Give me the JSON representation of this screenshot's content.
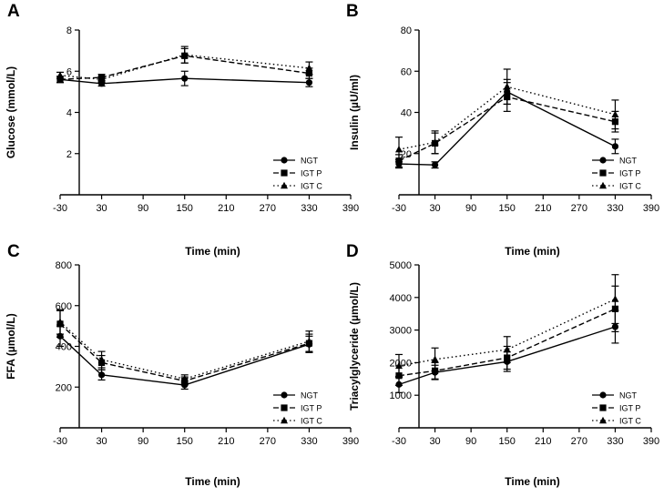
{
  "chart_data": [
    {
      "type": "line",
      "panel": "A",
      "ylabel": "Glucose (mmol/L)",
      "xlabel": "Time (min)",
      "x_ticks": [
        "-30",
        "30",
        "90",
        "150",
        "210",
        "270",
        "330",
        "390"
      ],
      "y_ticks": [
        "2",
        "4",
        "6",
        "8"
      ],
      "xlim": [
        -30,
        390
      ],
      "ylim": [
        0,
        8
      ],
      "x": [
        -30,
        30,
        150,
        330
      ],
      "series": [
        {
          "name": "NGT",
          "values": [
            5.6,
            5.4,
            5.65,
            5.45
          ],
          "err": [
            0.15,
            0.12,
            0.35,
            0.2
          ]
        },
        {
          "name": "IGT P",
          "values": [
            5.6,
            5.7,
            6.75,
            5.9
          ],
          "err": [
            0.15,
            0.15,
            0.35,
            0.25
          ]
        },
        {
          "name": "IGT C",
          "values": [
            5.8,
            5.6,
            6.8,
            6.15
          ],
          "err": [
            0.15,
            0.15,
            0.4,
            0.3
          ]
        }
      ]
    },
    {
      "type": "line",
      "panel": "B",
      "ylabel": "Insulin (µU/ml)",
      "xlabel": "Time (min)",
      "x_ticks": [
        "-30",
        "30",
        "90",
        "150",
        "210",
        "270",
        "330",
        "390"
      ],
      "y_ticks": [
        "20",
        "40",
        "60",
        "80"
      ],
      "xlim": [
        -30,
        390
      ],
      "ylim": [
        0,
        80
      ],
      "x": [
        -30,
        30,
        150,
        330
      ],
      "series": [
        {
          "name": "NGT",
          "values": [
            15,
            14.5,
            50,
            23.5
          ],
          "err": [
            2,
            1.5,
            6,
            3.5
          ]
        },
        {
          "name": "IGT P",
          "values": [
            16.5,
            25,
            47.5,
            35.5
          ],
          "err": [
            3,
            5,
            7,
            5
          ]
        },
        {
          "name": "IGT C",
          "values": [
            22,
            25.5,
            52.5,
            39
          ],
          "err": [
            6,
            5.5,
            8.5,
            7
          ]
        }
      ]
    },
    {
      "type": "line",
      "panel": "C",
      "ylabel": "FFA  (µmol/L)",
      "xlabel": "Time (min)",
      "x_ticks": [
        "-30",
        "30",
        "90",
        "150",
        "210",
        "270",
        "330",
        "390"
      ],
      "y_ticks": [
        "200",
        "400",
        "600",
        "800"
      ],
      "xlim": [
        -30,
        390
      ],
      "ylim": [
        0,
        800
      ],
      "x": [
        -30,
        30,
        150,
        330
      ],
      "series": [
        {
          "name": "NGT",
          "values": [
            450,
            260,
            210,
            410
          ],
          "err": [
            50,
            25,
            20,
            40
          ]
        },
        {
          "name": "IGT P",
          "values": [
            510,
            320,
            230,
            415
          ],
          "err": [
            65,
            35,
            20,
            45
          ]
        },
        {
          "name": "IGT C",
          "values": [
            520,
            335,
            240,
            425
          ],
          "err": [
            60,
            40,
            20,
            50
          ]
        }
      ]
    },
    {
      "type": "line",
      "panel": "D",
      "ylabel": "Triacylglyceride (µmol/L)",
      "xlabel": "Time (min)",
      "x_ticks": [
        "-30",
        "30",
        "90",
        "150",
        "210",
        "270",
        "330",
        "390"
      ],
      "y_ticks": [
        "1000",
        "2000",
        "3000",
        "4000",
        "5000"
      ],
      "xlim": [
        -30,
        390
      ],
      "ylim": [
        0,
        5000
      ],
      "x": [
        -30,
        30,
        150,
        330
      ],
      "series": [
        {
          "name": "NGT",
          "values": [
            1330,
            1700,
            2030,
            3100
          ],
          "err": [
            250,
            220,
            300,
            500
          ]
        },
        {
          "name": "IGT P",
          "values": [
            1600,
            1750,
            2150,
            3650
          ],
          "err": [
            300,
            250,
            350,
            700
          ]
        },
        {
          "name": "IGT C",
          "values": [
            1900,
            2100,
            2400,
            3950
          ],
          "err": [
            350,
            350,
            400,
            750
          ]
        }
      ]
    }
  ],
  "legend_labels": [
    "NGT",
    "IGT P",
    "IGT C"
  ]
}
